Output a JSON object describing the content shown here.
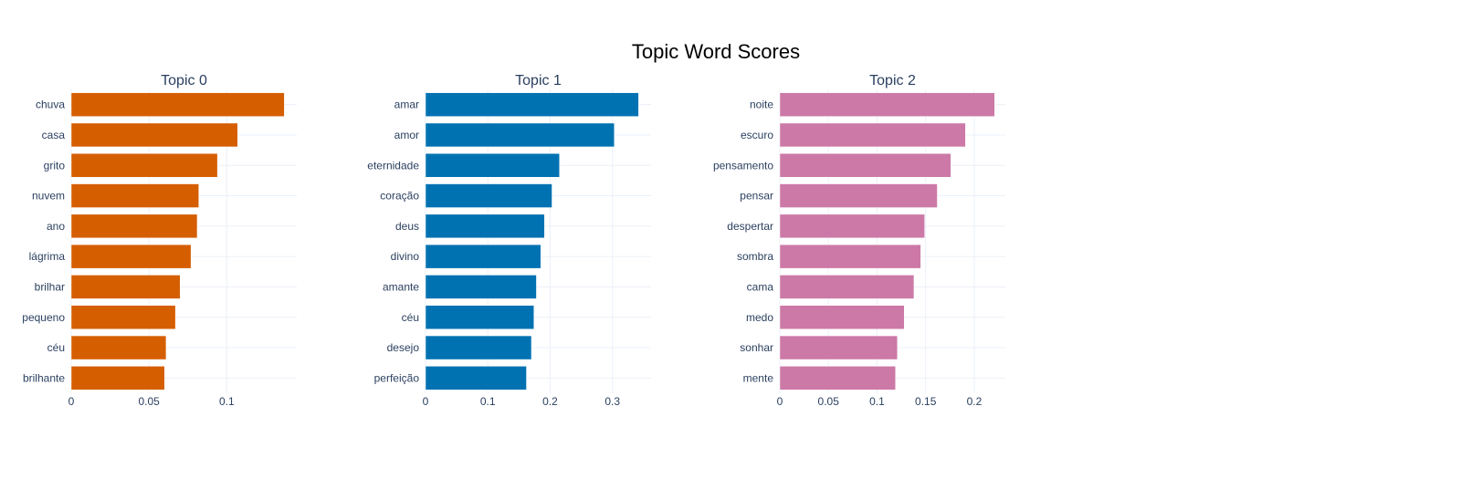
{
  "title": "Topic Word Scores",
  "colors": {
    "grid": "#ebf0f8",
    "tick_text": "#2a3f5f",
    "title_text": "#000000"
  },
  "chart_data": [
    {
      "type": "bar",
      "orientation": "horizontal",
      "title": "Topic 0",
      "color": "#D55E00",
      "categories": [
        "chuva",
        "casa",
        "grito",
        "nuvem",
        "ano",
        "lágrima",
        "brilhar",
        "pequeno",
        "céu",
        "brilhante"
      ],
      "values": [
        0.137,
        0.107,
        0.094,
        0.082,
        0.081,
        0.077,
        0.07,
        0.067,
        0.061,
        0.06
      ],
      "xlim": [
        0,
        0.145
      ],
      "xticks": [
        0,
        0.05,
        0.1
      ],
      "xtick_labels": [
        "0",
        "0.05",
        "0.1"
      ],
      "grid": true
    },
    {
      "type": "bar",
      "orientation": "horizontal",
      "title": "Topic 1",
      "color": "#0072B2",
      "categories": [
        "amar",
        "amor",
        "eternidade",
        "coração",
        "deus",
        "divino",
        "amante",
        "céu",
        "desejo",
        "perfeição"
      ],
      "values": [
        0.342,
        0.303,
        0.215,
        0.203,
        0.191,
        0.185,
        0.178,
        0.174,
        0.17,
        0.162
      ],
      "xlim": [
        0,
        0.362
      ],
      "xticks": [
        0,
        0.1,
        0.2,
        0.3
      ],
      "xtick_labels": [
        "0",
        "0.1",
        "0.2",
        "0.3"
      ],
      "grid": true
    },
    {
      "type": "bar",
      "orientation": "horizontal",
      "title": "Topic 2",
      "color": "#CC79A7",
      "categories": [
        "noite",
        "escuro",
        "pensamento",
        "pensar",
        "despertar",
        "sombra",
        "cama",
        "medo",
        "sonhar",
        "mente"
      ],
      "values": [
        0.221,
        0.191,
        0.176,
        0.162,
        0.149,
        0.145,
        0.138,
        0.128,
        0.121,
        0.119
      ],
      "xlim": [
        0,
        0.232
      ],
      "xticks": [
        0,
        0.05,
        0.1,
        0.15,
        0.2
      ],
      "xtick_labels": [
        "0",
        "0.05",
        "0.1",
        "0.15",
        "0.2"
      ],
      "grid": true
    }
  ]
}
